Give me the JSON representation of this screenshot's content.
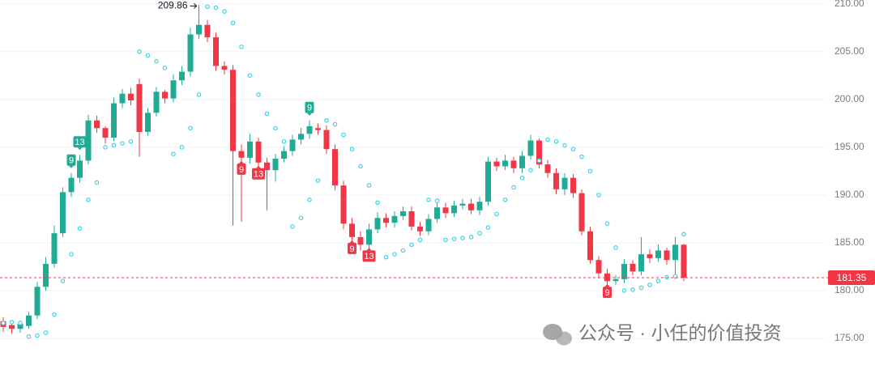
{
  "chart_data": {
    "type": "candlestick",
    "open": [
      176.8,
      176.4,
      176.0,
      176.3,
      177.4,
      180.4,
      182.8,
      186.0,
      190.3,
      191.8,
      193.6,
      197.8,
      197.0,
      196.0,
      199.6,
      200.6,
      201.6,
      196.6,
      198.6,
      200.8,
      200.1,
      202.0,
      202.9,
      206.8,
      207.8,
      206.5,
      203.5,
      203.1,
      194.6,
      193.9,
      195.6,
      193.4,
      192.6,
      193.8,
      194.6,
      195.8,
      196.4,
      197.0,
      196.8,
      194.8,
      191.0,
      187.0,
      185.6,
      184.8,
      186.4,
      187.6,
      187.1,
      187.8,
      188.3,
      186.7,
      186.2,
      187.5,
      188.7,
      188.1,
      188.9,
      189.1,
      188.4,
      189.3,
      193.5,
      193.0,
      193.6,
      192.8,
      194.1,
      195.7,
      193.2,
      192.3,
      190.6,
      191.8,
      190.2,
      186.2,
      183.2,
      181.8,
      181.0,
      181.2,
      182.8,
      182.0,
      183.8,
      183.4,
      184.2,
      183.2,
      184.8
    ],
    "high": [
      177.2,
      176.8,
      176.9,
      177.8,
      180.9,
      183.5,
      186.8,
      190.8,
      192.3,
      194.2,
      198.4,
      198.3,
      197.2,
      200.2,
      201.1,
      201.2,
      202.2,
      199.1,
      201.3,
      201.0,
      202.6,
      203.5,
      207.5,
      209.86,
      208.3,
      207.0,
      204.0,
      203.6,
      195.3,
      196.4,
      196.0,
      193.9,
      194.3,
      195.1,
      196.3,
      197.0,
      197.8,
      197.5,
      197.3,
      195.3,
      191.5,
      187.6,
      186.2,
      187.0,
      188.2,
      188.1,
      188.3,
      188.8,
      188.8,
      187.2,
      188.0,
      189.3,
      189.2,
      189.4,
      189.6,
      189.6,
      189.8,
      194.0,
      193.9,
      194.2,
      194.0,
      194.6,
      196.3,
      195.9,
      193.7,
      192.8,
      192.3,
      192.2,
      190.6,
      186.7,
      183.6,
      182.3,
      181.6,
      183.3,
      183.2,
      185.6,
      184.3,
      184.8,
      184.5,
      185.6,
      184.9
    ],
    "low": [
      175.7,
      175.5,
      175.6,
      176.0,
      177.0,
      180.0,
      182.4,
      185.6,
      189.8,
      191.3,
      193.2,
      196.5,
      195.4,
      195.6,
      199.1,
      199.4,
      194.0,
      196.2,
      198.2,
      199.6,
      199.7,
      201.5,
      202.4,
      206.3,
      206.0,
      203.0,
      202.6,
      186.8,
      187.2,
      193.3,
      192.9,
      188.4,
      191.4,
      193.4,
      194.1,
      195.3,
      195.9,
      196.3,
      194.3,
      190.5,
      186.4,
      184.5,
      184.2,
      184.4,
      186.0,
      186.6,
      186.6,
      187.4,
      186.3,
      185.7,
      185.8,
      187.1,
      187.6,
      187.7,
      188.5,
      188.0,
      187.9,
      188.9,
      192.5,
      192.6,
      192.3,
      192.3,
      193.7,
      192.8,
      191.8,
      190.1,
      190.0,
      189.7,
      185.8,
      182.8,
      181.3,
      180.5,
      180.6,
      180.8,
      181.6,
      181.6,
      182.9,
      183.0,
      182.7,
      181.2,
      181.0
    ],
    "close": [
      176.2,
      176.0,
      176.5,
      177.4,
      180.4,
      182.8,
      186.0,
      190.3,
      191.8,
      193.6,
      197.8,
      197.0,
      196.0,
      199.6,
      200.6,
      199.9,
      196.6,
      198.6,
      200.8,
      200.1,
      202.0,
      202.9,
      206.8,
      207.8,
      206.5,
      203.5,
      203.1,
      194.6,
      193.9,
      195.6,
      193.4,
      192.6,
      193.8,
      194.6,
      195.8,
      196.4,
      197.2,
      196.8,
      194.8,
      191.0,
      187.0,
      185.6,
      184.8,
      186.4,
      187.6,
      187.1,
      187.8,
      188.3,
      186.7,
      186.2,
      187.5,
      188.7,
      188.1,
      188.9,
      189.1,
      188.4,
      189.3,
      193.5,
      193.0,
      193.6,
      192.8,
      194.1,
      195.7,
      193.2,
      192.3,
      190.6,
      191.8,
      190.2,
      186.2,
      183.2,
      181.8,
      181.0,
      181.2,
      182.8,
      182.0,
      183.8,
      183.4,
      184.2,
      183.2,
      184.8,
      181.35
    ],
    "up_color": "#22ab94",
    "down_color": "#f23645",
    "sar": [
      176.6,
      176.7,
      176.6,
      175.2,
      175.3,
      175.6,
      177.5,
      181.0,
      183.8,
      186.5,
      189.5,
      191.3,
      195.0,
      195.2,
      195.4,
      195.6,
      205.0,
      204.6,
      204.0,
      203.3,
      194.3,
      195.0,
      197.0,
      200.5,
      209.7,
      209.6,
      209.2,
      208.0,
      205.5,
      202.5,
      200.5,
      198.5,
      197.0,
      195.6,
      186.7,
      187.6,
      189.5,
      191.5,
      197.8,
      197.4,
      196.3,
      194.8,
      193.0,
      191.0,
      189.2,
      183.5,
      183.8,
      184.2,
      184.8,
      185.3,
      189.5,
      189.4,
      185.3,
      185.4,
      185.5,
      185.6,
      186.0,
      186.6,
      188.0,
      189.5,
      190.8,
      191.8,
      192.6,
      193.6,
      195.8,
      195.6,
      195.2,
      194.8,
      194.0,
      192.5,
      190.0,
      187.0,
      184.5,
      180.0,
      180.1,
      180.3,
      180.6,
      181.0,
      181.4,
      181.5,
      185.9
    ],
    "sar_color": "#3fd3e6",
    "ylim": [
      171.7,
      210.4
    ],
    "yticks": [
      {
        "value": 175,
        "label": "175.00"
      },
      {
        "value": 180,
        "label": "180.00"
      },
      {
        "value": 185,
        "label": "185.00"
      },
      {
        "value": 190,
        "label": "190.00"
      },
      {
        "value": 195,
        "label": "195.00"
      },
      {
        "value": 200,
        "label": "200.00"
      },
      {
        "value": 205,
        "label": "205.00"
      },
      {
        "value": 210,
        "label": "210.00"
      }
    ],
    "grid": true,
    "last_price_color": "#f23645",
    "markers": [
      {
        "label": "9",
        "index": 8,
        "position": "above",
        "color": "#22ab94"
      },
      {
        "label": "13",
        "index": 9,
        "position": "above",
        "color": "#22ab94"
      },
      {
        "label": "9",
        "index": 36,
        "position": "above",
        "color": "#22ab94"
      },
      {
        "label": "9",
        "index": 28,
        "position": "below",
        "color": "#f23645"
      },
      {
        "label": "13",
        "index": 30,
        "position": "below",
        "color": "#f23645"
      },
      {
        "label": "9",
        "index": 41,
        "position": "below",
        "color": "#f23645"
      },
      {
        "label": "13",
        "index": 43,
        "position": "below",
        "color": "#f23645"
      },
      {
        "label": "9",
        "index": 71,
        "position": "below",
        "color": "#f23645"
      }
    ]
  },
  "watermark": "公众号 · 小任的价值投资"
}
